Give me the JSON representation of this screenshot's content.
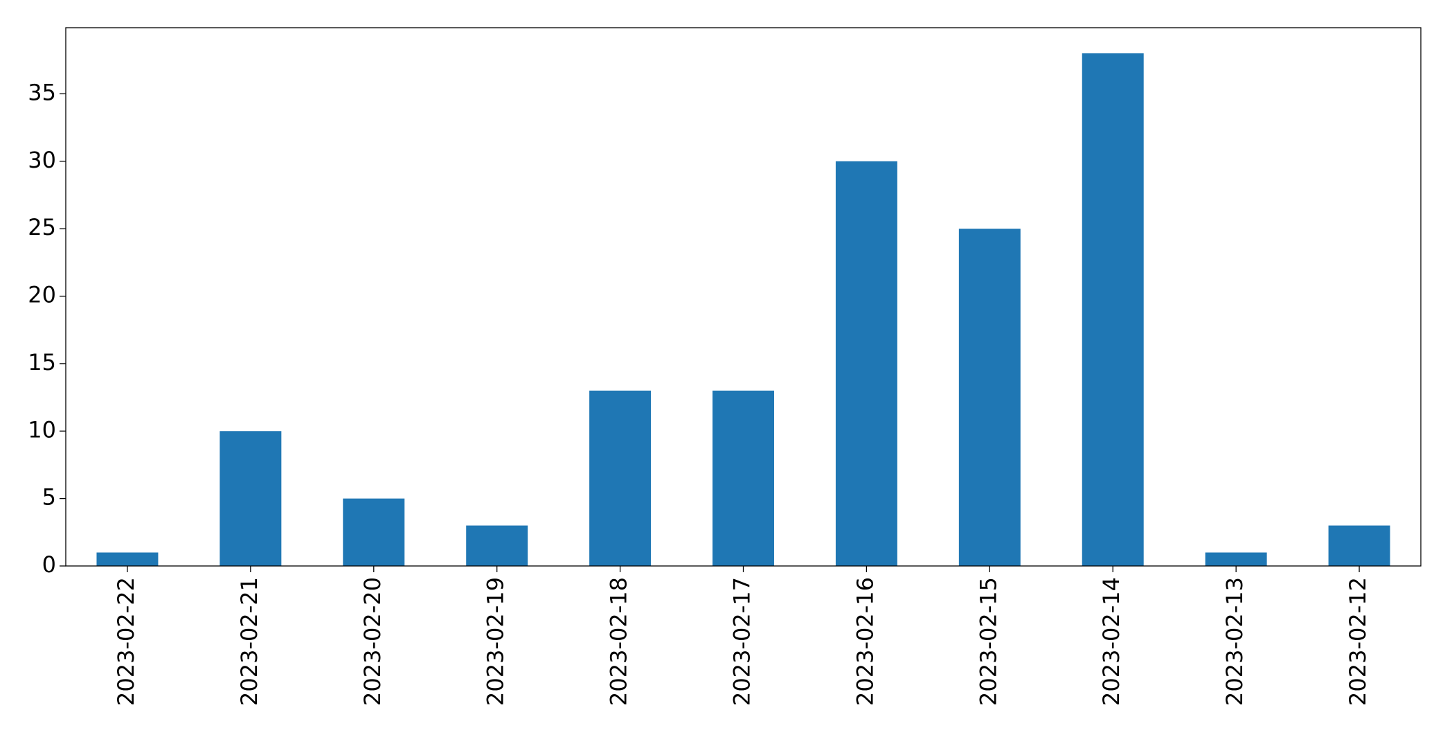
{
  "chart_data": {
    "type": "bar",
    "categories": [
      "2023-02-22",
      "2023-02-21",
      "2023-02-20",
      "2023-02-19",
      "2023-02-18",
      "2023-02-17",
      "2023-02-16",
      "2023-02-15",
      "2023-02-14",
      "2023-02-13",
      "2023-02-12"
    ],
    "values": [
      1,
      10,
      5,
      3,
      13,
      13,
      30,
      25,
      38,
      1,
      3
    ],
    "color": "#1f77b4",
    "ylim": [
      0,
      39.9
    ],
    "yticks": [
      0,
      5,
      10,
      15,
      20,
      25,
      30,
      35
    ],
    "grid": false
  }
}
